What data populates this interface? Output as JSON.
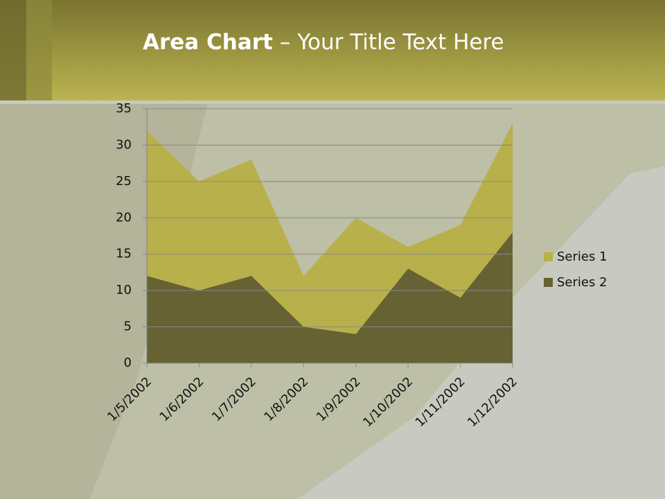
{
  "chart_data": {
    "type": "area",
    "title": [
      "Area Chart",
      "– Your Title Text Here"
    ],
    "categories": [
      "1/5/2002",
      "1/6/2002",
      "1/7/2002",
      "1/8/2002",
      "1/9/2002",
      "1/10/2002",
      "1/11/2002",
      "1/12/2002"
    ],
    "series": [
      {
        "name": "Series 1",
        "color": "#b8b04a",
        "values": [
          32,
          25,
          28,
          12,
          20,
          16,
          19,
          33
        ]
      },
      {
        "name": "Series 2",
        "color": "#666233",
        "values": [
          12,
          10,
          12,
          5,
          4,
          13,
          9,
          18
        ]
      }
    ],
    "ylim": [
      0,
      35
    ],
    "yticks": [
      0,
      5,
      10,
      15,
      20,
      25,
      30,
      35
    ],
    "grid": true,
    "legend": "right"
  }
}
